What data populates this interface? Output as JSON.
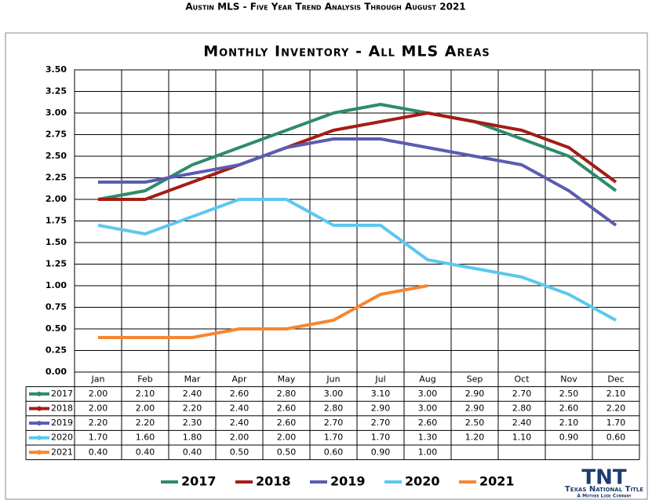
{
  "header": "Austin MLS - Five Year Trend Analysis Through August 2021",
  "logo": {
    "mark": "TNT",
    "name": "Texas National Title",
    "tagline": "A Mother Lode Company"
  },
  "chart_data": {
    "type": "line",
    "title": "Monthly Inventory - All MLS Areas",
    "categories": [
      "Jan",
      "Feb",
      "Mar",
      "Apr",
      "May",
      "Jun",
      "Jul",
      "Aug",
      "Sep",
      "Oct",
      "Nov",
      "Dec"
    ],
    "ylim": [
      0,
      3.5
    ],
    "yticks": [
      {
        "value": 0,
        "label": "0.00"
      },
      {
        "value": 0.25,
        "label": "0.25"
      },
      {
        "value": 0.5,
        "label": "0.50"
      },
      {
        "value": 0.75,
        "label": "0.75"
      },
      {
        "value": 1,
        "label": "1.00"
      },
      {
        "value": 1.25,
        "label": "1.25"
      },
      {
        "value": 1.5,
        "label": "1.50"
      },
      {
        "value": 1.75,
        "label": "1.75"
      },
      {
        "value": 2,
        "label": "2.00"
      },
      {
        "value": 2.25,
        "label": "2.25"
      },
      {
        "value": 2.5,
        "label": "2.50"
      },
      {
        "value": 2.75,
        "label": "2.75"
      },
      {
        "value": 3,
        "label": "3.00"
      },
      {
        "value": 3.25,
        "label": "3.25"
      },
      {
        "value": 3.5,
        "label": "3.50"
      }
    ],
    "grid": true,
    "series": [
      {
        "name": "2017",
        "color": "#2e8b6a",
        "values": [
          2.0,
          2.1,
          2.4,
          2.6,
          2.8,
          3.0,
          3.1,
          3.0,
          2.9,
          2.7,
          2.5,
          2.1
        ],
        "value_labels": [
          "2.00",
          "2.10",
          "2.40",
          "2.60",
          "2.80",
          "3.00",
          "3.10",
          "3.00",
          "2.90",
          "2.70",
          "2.50",
          "2.10"
        ]
      },
      {
        "name": "2018",
        "color": "#a31d15",
        "values": [
          2.0,
          2.0,
          2.2,
          2.4,
          2.6,
          2.8,
          2.9,
          3.0,
          2.9,
          2.8,
          2.6,
          2.2
        ],
        "value_labels": [
          "2.00",
          "2.00",
          "2.20",
          "2.40",
          "2.60",
          "2.80",
          "2.90",
          "3.00",
          "2.90",
          "2.80",
          "2.60",
          "2.20"
        ]
      },
      {
        "name": "2019",
        "color": "#5a5cb0",
        "values": [
          2.2,
          2.2,
          2.3,
          2.4,
          2.6,
          2.7,
          2.7,
          2.6,
          2.5,
          2.4,
          2.1,
          1.7
        ],
        "value_labels": [
          "2.20",
          "2.20",
          "2.30",
          "2.40",
          "2.60",
          "2.70",
          "2.70",
          "2.60",
          "2.50",
          "2.40",
          "2.10",
          "1.70"
        ]
      },
      {
        "name": "2020",
        "color": "#5cc8ee",
        "values": [
          1.7,
          1.6,
          1.8,
          2.0,
          2.0,
          1.7,
          1.7,
          1.3,
          1.2,
          1.1,
          0.9,
          0.6
        ],
        "value_labels": [
          "1.70",
          "1.60",
          "1.80",
          "2.00",
          "2.00",
          "1.70",
          "1.70",
          "1.30",
          "1.20",
          "1.10",
          "0.90",
          "0.60"
        ]
      },
      {
        "name": "2021",
        "color": "#f7862f",
        "values": [
          0.4,
          0.4,
          0.4,
          0.5,
          0.5,
          0.6,
          0.9,
          1.0,
          null,
          null,
          null,
          null
        ],
        "value_labels": [
          "0.40",
          "0.40",
          "0.40",
          "0.50",
          "0.50",
          "0.60",
          "0.90",
          "1.00",
          null,
          null,
          null,
          null
        ]
      }
    ]
  }
}
